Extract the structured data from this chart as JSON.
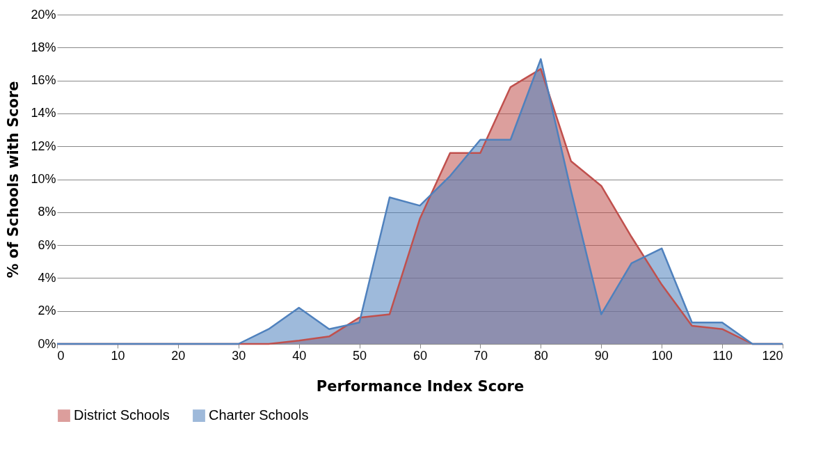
{
  "chart_data": {
    "type": "area",
    "xlabel": "Performance Index Score",
    "ylabel": "% of Schools with Score",
    "x": [
      0,
      5,
      10,
      15,
      20,
      25,
      30,
      35,
      40,
      45,
      50,
      55,
      60,
      65,
      70,
      75,
      80,
      85,
      90,
      95,
      100,
      105,
      110,
      115,
      120
    ],
    "series": [
      {
        "name": "District Schools",
        "color": "#c0504d",
        "values": [
          0,
          0,
          0,
          0,
          0,
          0,
          0,
          0,
          0.2,
          0.45,
          1.6,
          1.8,
          7.6,
          11.6,
          11.6,
          15.6,
          16.7,
          11.1,
          9.6,
          6.5,
          3.6,
          1.1,
          0.9,
          0,
          0
        ]
      },
      {
        "name": "Charter Schools",
        "color": "#4f81bd",
        "values": [
          0,
          0,
          0,
          0,
          0,
          0,
          0,
          0.9,
          2.2,
          0.9,
          1.3,
          8.9,
          8.4,
          10.2,
          12.4,
          12.4,
          17.3,
          9.3,
          1.8,
          4.9,
          5.8,
          1.3,
          1.3,
          0,
          0
        ]
      }
    ],
    "xlim": [
      0,
      120
    ],
    "xticks": [
      0,
      10,
      20,
      30,
      40,
      50,
      60,
      70,
      80,
      90,
      100,
      110,
      120
    ],
    "ylim": [
      0,
      20
    ],
    "yticks": [
      {
        "value": 0,
        "label": "0%"
      },
      {
        "value": 2,
        "label": "2%"
      },
      {
        "value": 4,
        "label": "4%"
      },
      {
        "value": 6,
        "label": "6%"
      },
      {
        "value": 8,
        "label": "8%"
      },
      {
        "value": 10,
        "label": "10%"
      },
      {
        "value": 12,
        "label": "12%"
      },
      {
        "value": 14,
        "label": "14%"
      },
      {
        "value": 16,
        "label": "16%"
      },
      {
        "value": 18,
        "label": "18%"
      },
      {
        "value": 20,
        "label": "20%"
      }
    ],
    "grid": "y",
    "legend": "bottom",
    "marker": "none",
    "line_style": "solid"
  }
}
